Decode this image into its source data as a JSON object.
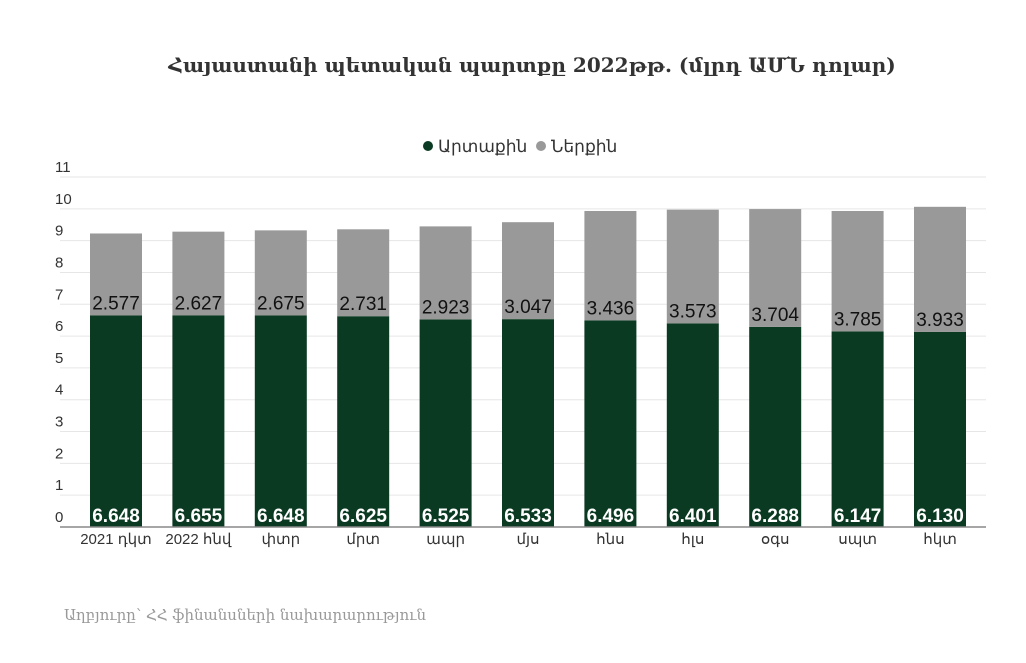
{
  "chart_data": {
    "type": "bar",
    "stacked": true,
    "title": "Հայաստանի պետական պարտքը 2022թթ. (մլրդ ԱՄՆ դոլար)",
    "categories": [
      "2021 դկտ",
      "2022 հնվ",
      "փտր",
      "մրտ",
      "ապր",
      "մյս",
      "հնս",
      "հլս",
      "օգս",
      "սպտ",
      "հկտ"
    ],
    "series": [
      {
        "name": "Արտաքին",
        "color": "#0b3a22",
        "values": [
          6.648,
          6.655,
          6.648,
          6.625,
          6.525,
          6.533,
          6.496,
          6.401,
          6.288,
          6.147,
          6.13
        ]
      },
      {
        "name": "Ներքին",
        "color": "#999999",
        "values": [
          2.577,
          2.627,
          2.675,
          2.731,
          2.923,
          3.047,
          3.436,
          3.573,
          3.704,
          3.785,
          3.933
        ]
      }
    ],
    "ylim": [
      0,
      11
    ],
    "yticks": [
      "0",
      "1",
      "2",
      "3",
      "4",
      "5",
      "6",
      "7",
      "8",
      "9",
      "10",
      "11"
    ],
    "grid": true,
    "legend_position": "top-center",
    "source": "Աղբյուրը՝ ՀՀ ֆինանսների նախարարություն"
  }
}
